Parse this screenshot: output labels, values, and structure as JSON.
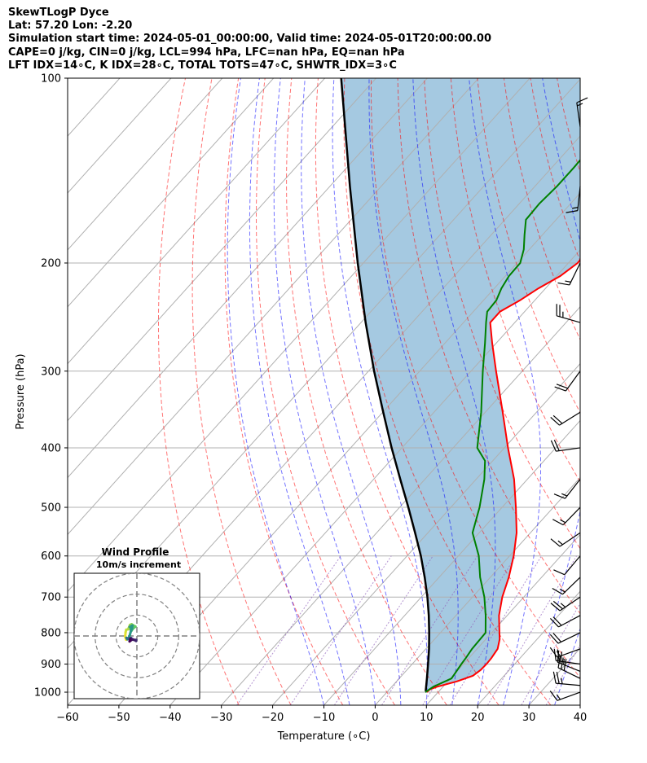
{
  "title_lines": [
    "SkewTLogP Dyce",
    "Lat: 57.20   Lon: -2.20",
    "Simulation start time: 2024-05-01_00:00:00, Valid time: 2024-05-01T20:00:00.00",
    "CAPE=0 j/kg, CIN=0 j/kg, LCL=994 hPa, LFC=nan hPa, EQ=nan hPa",
    "LFT IDX=14∘C, K IDX=28∘C, TOTAL TOTS=47∘C, SHWTR_IDX=3∘C"
  ],
  "chart_data": {
    "type": "skewt",
    "title": "SkewTLogP Dyce",
    "xlabel": "Temperature (∘C)",
    "ylabel": "Pressure (hPa)",
    "xlim": [
      -60,
      40
    ],
    "ylim": [
      1050,
      100
    ],
    "skew_slope": 0.9,
    "x_ticks": [
      -60,
      -50,
      -40,
      -30,
      -20,
      -10,
      0,
      10,
      20,
      30,
      40
    ],
    "y_ticks": [
      1000,
      900,
      800,
      700,
      600,
      500,
      400,
      300,
      200,
      100
    ],
    "temperature": {
      "name": "Temperature",
      "color": "#ff0000",
      "points": [
        [
          1000,
          7.8
        ],
        [
          990,
          7.9
        ],
        [
          980,
          8.8
        ],
        [
          960,
          11.8
        ],
        [
          940,
          13.9
        ],
        [
          920,
          14.4
        ],
        [
          900,
          14.5
        ],
        [
          880,
          14.4
        ],
        [
          850,
          14
        ],
        [
          820,
          12.7
        ],
        [
          800,
          11.5
        ],
        [
          750,
          8.4
        ],
        [
          700,
          5.8
        ],
        [
          650,
          3.6
        ],
        [
          600,
          0.8
        ],
        [
          550,
          -2.7
        ],
        [
          500,
          -7.3
        ],
        [
          450,
          -12.6
        ],
        [
          400,
          -19.3
        ],
        [
          350,
          -26.6
        ],
        [
          300,
          -35.1
        ],
        [
          270,
          -40.8
        ],
        [
          250,
          -44.8
        ],
        [
          240,
          -44.8
        ],
        [
          230,
          -42.9
        ],
        [
          220,
          -41.4
        ],
        [
          210,
          -39.3
        ],
        [
          200,
          -38.2
        ],
        [
          190,
          -38.4
        ],
        [
          180,
          -38.6
        ],
        [
          170,
          -37.4
        ],
        [
          160,
          -36.1
        ],
        [
          150,
          -36
        ],
        [
          140,
          -35.3
        ],
        [
          130,
          -36.8
        ],
        [
          120,
          -37.6
        ],
        [
          110,
          -39.1
        ],
        [
          100,
          -41.6
        ]
      ]
    },
    "dewpoint": {
      "name": "Dewpoint",
      "color": "#008000",
      "points": [
        [
          1000,
          7.5
        ],
        [
          980,
          8.1
        ],
        [
          950,
          10.2
        ],
        [
          900,
          9.6
        ],
        [
          880,
          9.4
        ],
        [
          850,
          9
        ],
        [
          800,
          8.8
        ],
        [
          750,
          5.8
        ],
        [
          700,
          2.3
        ],
        [
          650,
          -2
        ],
        [
          600,
          -6
        ],
        [
          550,
          -11.3
        ],
        [
          500,
          -14.4
        ],
        [
          450,
          -18.4
        ],
        [
          420,
          -21.5
        ],
        [
          400,
          -25.3
        ],
        [
          350,
          -30.8
        ],
        [
          300,
          -37.7
        ],
        [
          270,
          -42.2
        ],
        [
          250,
          -45.6
        ],
        [
          240,
          -47.3
        ],
        [
          230,
          -47.5
        ],
        [
          220,
          -48.6
        ],
        [
          210,
          -49.3
        ],
        [
          200,
          -49.4
        ],
        [
          190,
          -51.1
        ],
        [
          180,
          -53.5
        ],
        [
          170,
          -55.9
        ],
        [
          160,
          -56.1
        ],
        [
          150,
          -55.7
        ],
        [
          140,
          -55.7
        ],
        [
          130,
          -55.9
        ],
        [
          120,
          -57.6
        ],
        [
          110,
          -59.9
        ],
        [
          100,
          -62.4
        ]
      ]
    },
    "parcel_profile": {
      "name": "Parcel",
      "color": "#000000",
      "points": [
        [
          1000,
          7.8
        ],
        [
          994,
          7.3
        ],
        [
          950,
          5.4
        ],
        [
          900,
          3.1
        ],
        [
          850,
          0.6
        ],
        [
          800,
          -2.2
        ],
        [
          750,
          -5.3
        ],
        [
          700,
          -8.8
        ],
        [
          650,
          -12.8
        ],
        [
          600,
          -17.3
        ],
        [
          550,
          -22.5
        ],
        [
          500,
          -28.3
        ],
        [
          450,
          -34.8
        ],
        [
          400,
          -42
        ],
        [
          350,
          -49.9
        ],
        [
          300,
          -58.9
        ],
        [
          250,
          -69.1
        ],
        [
          200,
          -81.1
        ],
        [
          150,
          -96.1
        ],
        [
          100,
          -116.8
        ]
      ]
    },
    "dry_adiabats_theta_C": [
      -30,
      -20,
      -10,
      0,
      10,
      20,
      30,
      40,
      50,
      60,
      70,
      80,
      90,
      100,
      110,
      120,
      130,
      140
    ],
    "moist_adiabats_T1000_C": [
      -10,
      -5,
      0,
      5,
      10,
      15,
      20,
      25,
      30,
      35
    ],
    "mixing_ratio_gkg": [
      0.4,
      1,
      2,
      4,
      7,
      10,
      16,
      24,
      32
    ],
    "isotherm_step_C": 10,
    "wind_barbs": [
      {
        "p": 1000,
        "spd_kt": 14,
        "dir_deg": 250
      },
      {
        "p": 975,
        "spd_kt": 25,
        "dir_deg": 275
      },
      {
        "p": 950,
        "spd_kt": 28,
        "dir_deg": 296
      },
      {
        "p": 925,
        "spd_kt": 25,
        "dir_deg": 292
      },
      {
        "p": 900,
        "spd_kt": 20,
        "dir_deg": 278
      },
      {
        "p": 850,
        "spd_kt": 15,
        "dir_deg": 250
      },
      {
        "p": 800,
        "spd_kt": 18,
        "dir_deg": 244
      },
      {
        "p": 750,
        "spd_kt": 18,
        "dir_deg": 242
      },
      {
        "p": 700,
        "spd_kt": 25,
        "dir_deg": 236
      },
      {
        "p": 650,
        "spd_kt": 15,
        "dir_deg": 226
      },
      {
        "p": 600,
        "spd_kt": 10,
        "dir_deg": 220
      },
      {
        "p": 550,
        "spd_kt": 15,
        "dir_deg": 236
      },
      {
        "p": 500,
        "spd_kt": 15,
        "dir_deg": 224
      },
      {
        "p": 450,
        "spd_kt": 15,
        "dir_deg": 218
      },
      {
        "p": 400,
        "spd_kt": 20,
        "dir_deg": 262
      },
      {
        "p": 350,
        "spd_kt": 20,
        "dir_deg": 238
      },
      {
        "p": 300,
        "spd_kt": 20,
        "dir_deg": 216
      },
      {
        "p": 250,
        "spd_kt": 25,
        "dir_deg": 286
      },
      {
        "p": 200,
        "spd_kt": 15,
        "dir_deg": 206
      },
      {
        "p": 150,
        "spd_kt": 15,
        "dir_deg": 186
      },
      {
        "p": 120,
        "spd_kt": 15,
        "dir_deg": 352
      }
    ],
    "hodograph": {
      "title": "Wind Profile",
      "subtitle": "10m/s increment",
      "ring_step_ms": 10,
      "rings": [
        10,
        20,
        30
      ],
      "axis_limit_ms": 30,
      "points_uv_ms": [
        [
          -5.2,
          -1.8
        ],
        [
          -5.6,
          -0.3
        ],
        [
          -5.4,
          1.8
        ],
        [
          -5.1,
          3
        ],
        [
          -4.2,
          3.2
        ],
        [
          -3.3,
          5.3
        ],
        [
          -2.5,
          5.6
        ],
        [
          -1.6,
          5
        ],
        [
          -0.7,
          4.5
        ],
        [
          -1.8,
          3.6
        ],
        [
          -2.6,
          2.5
        ],
        [
          -3,
          3
        ],
        [
          -2.2,
          3.3
        ],
        [
          -3.5,
          4.3
        ],
        [
          -3.2,
          4.5
        ],
        [
          -2.1,
          5
        ],
        [
          -3.8,
          -1
        ],
        [
          -3.8,
          -1.5
        ],
        [
          -4.1,
          -1.1
        ],
        [
          -4.6,
          -1.6
        ],
        [
          -5,
          -0.9
        ],
        [
          -4,
          -1.2
        ],
        [
          -3.5,
          -1.3
        ],
        [
          -2.7,
          -1
        ],
        [
          -3.2,
          -1.2
        ],
        [
          -2.4,
          -1.6
        ],
        [
          -1.8,
          -1.8
        ],
        [
          -0.3,
          -1.9
        ],
        [
          -0.4,
          -2.4
        ],
        [
          -1,
          -2
        ],
        [
          -2,
          -1.6
        ],
        [
          -3,
          -2.2
        ],
        [
          -3.5,
          -2.6
        ],
        [
          -3.1,
          -1.2
        ]
      ]
    }
  }
}
